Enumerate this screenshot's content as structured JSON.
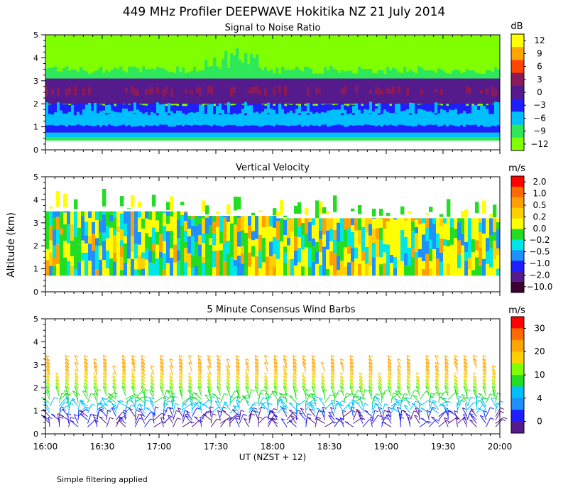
{
  "title": "449 MHz Profiler DEEPWAVE Hokitika NZ 21 July 2014",
  "footer_note": "Simple filtering applied",
  "ylabel": "Altitude (km)",
  "xlabel": "UT  (NZST + 12)",
  "x_ticks": [
    "16:00",
    "16:30",
    "17:00",
    "17:30",
    "18:00",
    "18:30",
    "19:00",
    "19:30",
    "20:00"
  ],
  "y_ticks": [
    "0",
    "1",
    "2",
    "3",
    "4",
    "5"
  ],
  "chart_data": [
    {
      "type": "heatmap",
      "title": "Signal to Noise Ratio",
      "units": "dB",
      "xlim": [
        16.0,
        20.0
      ],
      "ylim": [
        0,
        5
      ],
      "colorbar_ticks": [
        "12",
        "9",
        "6",
        "3",
        "0",
        "−3",
        "−6",
        "−9",
        "−12"
      ],
      "colors": [
        "#ffff00",
        "#ffa500",
        "#ff4500",
        "#8b1a5a",
        "#551a8b",
        "#1e1eff",
        "#00bfff",
        "#2ee85a",
        "#80ff00"
      ]
    },
    {
      "type": "heatmap",
      "title": "Vertical Velocity",
      "units": "m/s",
      "xlim": [
        16.0,
        20.0
      ],
      "ylim": [
        0,
        5
      ],
      "colorbar_ticks": [
        "2.0",
        "1.0",
        "0.5",
        "0.2",
        "0.0",
        "−0.2",
        "−0.5",
        "−1.0",
        "−2.0",
        "−10.0"
      ],
      "colors": [
        "#ff0000",
        "#ff6a00",
        "#ff9f00",
        "#ffd000",
        "#ffff00",
        "#22dd22",
        "#00e5e5",
        "#1e90ff",
        "#1e1eff",
        "#551a8b",
        "#3a0030"
      ]
    },
    {
      "type": "wind_barbs",
      "title": "5 Minute Consensus Wind Barbs",
      "units": "m/s",
      "xlim": [
        16.0,
        20.0
      ],
      "ylim": [
        0,
        5
      ],
      "colorbar_ticks": [
        "30",
        "20",
        "10",
        "4",
        "0"
      ],
      "colors": [
        "#ff0000",
        "#ff6a00",
        "#ffa500",
        "#ffd000",
        "#80ff00",
        "#22dd22",
        "#00bfff",
        "#1e90ff",
        "#1e1eff",
        "#551a8b"
      ]
    }
  ]
}
